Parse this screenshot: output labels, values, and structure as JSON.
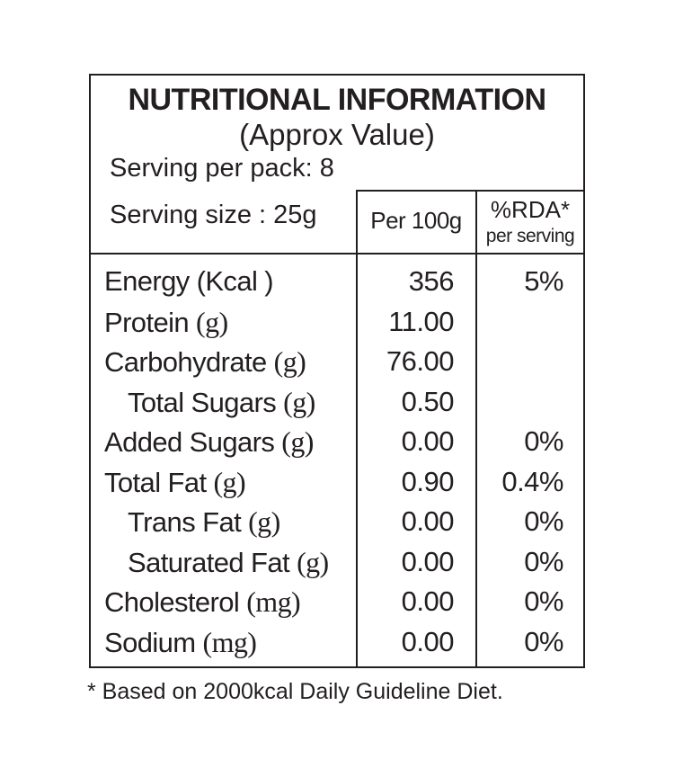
{
  "header": {
    "title": "NUTRITIONAL INFORMATION",
    "subtitle": "(Approx Value)",
    "serving_per_pack": "Serving per pack: 8",
    "serving_size": "Serving size : 25g"
  },
  "table": {
    "columns": [
      "Per 100g",
      "%RDA*"
    ],
    "columns_sub": [
      null,
      "per serving"
    ],
    "rows": [
      {
        "name": "Energy (Kcal )",
        "unit": null,
        "indent": false,
        "per100g": "356",
        "rda": "5%"
      },
      {
        "name": "Protein",
        "unit": "(g)",
        "indent": false,
        "per100g": "11.00",
        "rda": null
      },
      {
        "name": "Carbohydrate",
        "unit": "(g)",
        "indent": false,
        "per100g": "76.00",
        "rda": null
      },
      {
        "name": "Total Sugars",
        "unit": "(g)",
        "indent": true,
        "per100g": "0.50",
        "rda": null
      },
      {
        "name": "Added Sugars",
        "unit": "(g)",
        "indent": false,
        "per100g": "0.00",
        "rda": "0%"
      },
      {
        "name": "Total Fat",
        "unit": "(g)",
        "indent": false,
        "per100g": "0.90",
        "rda": "0.4%"
      },
      {
        "name": "Trans Fat",
        "unit": "(g)",
        "indent": true,
        "per100g": "0.00",
        "rda": "0%"
      },
      {
        "name": "Saturated Fat",
        "unit": "(g)",
        "indent": true,
        "per100g": "0.00",
        "rda": "0%"
      },
      {
        "name": "Cholesterol",
        "unit": "(mg)",
        "indent": false,
        "per100g": "0.00",
        "rda": "0%"
      },
      {
        "name": "Sodium",
        "unit": "(mg)",
        "indent": false,
        "per100g": "0.00",
        "rda": "0%"
      }
    ]
  },
  "footnote": "* Based on 2000kcal Daily Guideline Diet."
}
